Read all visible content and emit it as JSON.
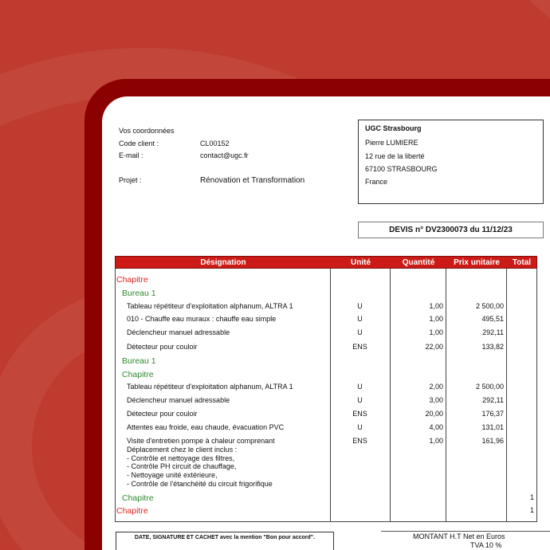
{
  "colors": {
    "background": "#bf3a2f",
    "frame": "#8b0000",
    "header": "#cc1b16",
    "chapter": "#e0231b",
    "section": "#2f8a2f"
  },
  "client": {
    "heading": "Vos coordonnées",
    "code_label": "Code client :",
    "code_value": "CL00152",
    "email_label": "E-mail :",
    "email_value": "contact@ugc.fr",
    "project_label": "Projet :",
    "project_value": "Rénovation et Transformation"
  },
  "address": {
    "company": "UGC Strasbourg",
    "contact": "Pierre LUMIERE",
    "street": "12 rue de la liberté",
    "city": "67100 STRASBOURG",
    "country": "France"
  },
  "quote_title": "DEVIS n° DV2300073 du 11/12/23",
  "table": {
    "headers": [
      "Désignation",
      "Unité",
      "Quantité",
      "Prix unitaire",
      "Total"
    ],
    "rows": [
      {
        "type": "chapter",
        "label": "Chapitre"
      },
      {
        "type": "section",
        "label": "Bureau 1"
      },
      {
        "type": "item",
        "label": "Tableau répétiteur d'exploitation alphanum, ALTRA 1",
        "unit": "U",
        "qty": "1,00",
        "price": "2 500,00"
      },
      {
        "type": "item",
        "label": "010 - Chauffe eau muraux : chauffe eau simple",
        "unit": "U",
        "qty": "1,00",
        "price": "495,51"
      },
      {
        "type": "item",
        "label": "Déclencheur manuel adressable",
        "unit": "U",
        "qty": "1,00",
        "price": "292,11"
      },
      {
        "type": "item",
        "label": "Détecteur pour couloir",
        "unit": "ENS",
        "qty": "22,00",
        "price": "133,82"
      },
      {
        "type": "section",
        "label": "Bureau 1"
      },
      {
        "type": "section",
        "label": "Chapitre"
      },
      {
        "type": "item",
        "label": "Tableau répétiteur d'exploitation alphanum, ALTRA 1",
        "unit": "U",
        "qty": "2,00",
        "price": "2 500,00"
      },
      {
        "type": "item",
        "label": "Déclencheur manuel adressable",
        "unit": "U",
        "qty": "3,00",
        "price": "292,11"
      },
      {
        "type": "item",
        "label": "Détecteur pour couloir",
        "unit": "ENS",
        "qty": "20,00",
        "price": "176,37"
      },
      {
        "type": "item",
        "label": "Attentes eau froide, eau chaude, évacuation PVC",
        "unit": "U",
        "qty": "4,00",
        "price": "131,01"
      },
      {
        "type": "item",
        "label": "Visite d'entretien pompe à chaleur comprenant",
        "unit": "ENS",
        "qty": "1,00",
        "price": "161,96",
        "details": [
          "Déplacement chez le client inclus :",
          "- Contrôle et nettoyage des filtres,",
          "- Contrôle PH circuit de chauffage,",
          "- Nettoyage unité extérieure,",
          "- Contrôle de l'étanchéité du circuit frigorifique"
        ]
      },
      {
        "type": "section",
        "label": "Chapitre",
        "total": "1"
      },
      {
        "type": "chapter",
        "label": "Chapitre",
        "total": "1"
      }
    ]
  },
  "footer": {
    "signature": "DATE, SIGNATURE ET CACHET avec la mention \"Bon pour accord\".",
    "amount_label": "MONTANT H.T Net en Euros",
    "vat_label": "TVA 10 %"
  }
}
